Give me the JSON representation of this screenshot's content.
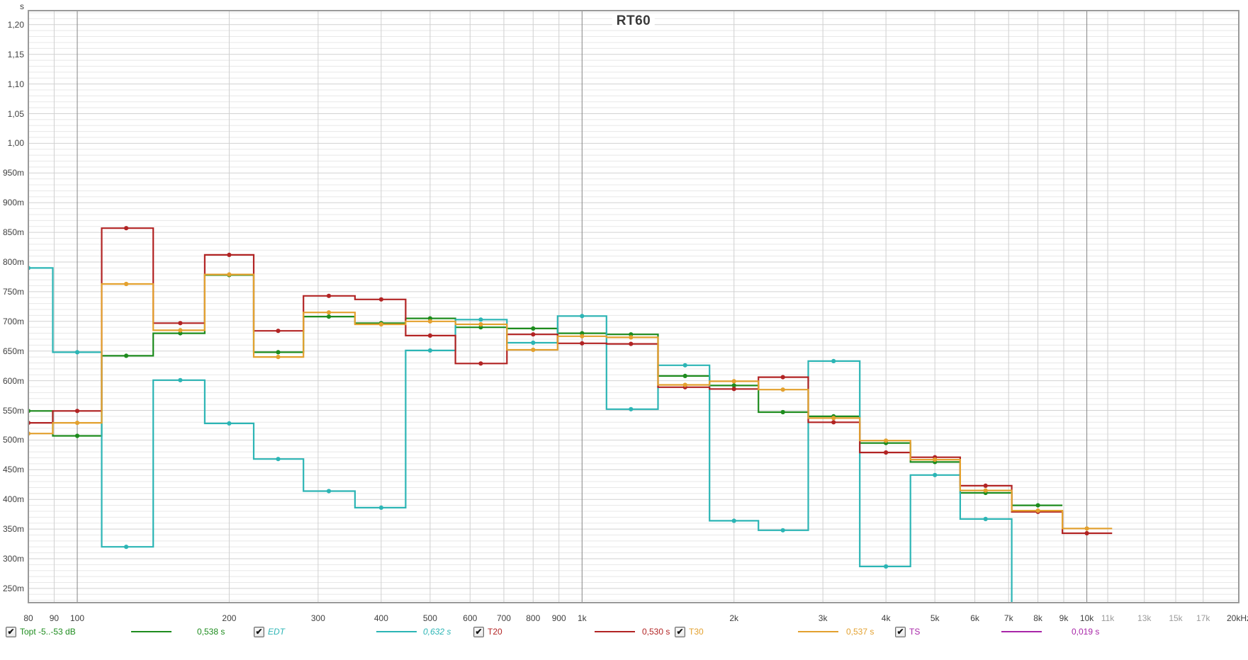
{
  "chart_data": {
    "type": "step-line",
    "title": "RT60",
    "x_scale": "log",
    "x_range_hz": [
      80,
      20000
    ],
    "y_unit": "s",
    "y_range_s": [
      0.226,
      1.224
    ],
    "y_major_step_s": 0.05,
    "y_minor_step_s": 0.01,
    "band_fraction": "1/3 octave",
    "bands_hz": [
      80,
      100,
      125,
      160,
      200,
      250,
      315,
      400,
      500,
      630,
      800,
      1000,
      1250,
      1600,
      2000,
      2500,
      3150,
      4000,
      5000,
      6300,
      8000,
      10000
    ],
    "series": [
      {
        "id": "topt",
        "name": "Topt -5..-53 dB",
        "color": "#1e8c1e",
        "values_ms": [
          549,
          507,
          642,
          680,
          778,
          648,
          708,
          697,
          705,
          690,
          688,
          680,
          678,
          608,
          592,
          547,
          540,
          495,
          463,
          411,
          390,
          null
        ]
      },
      {
        "id": "edt",
        "name": "EDT",
        "color": "#2cb5b5",
        "plunge_after_hz": 6300,
        "values_ms": [
          790,
          648,
          320,
          601,
          528,
          468,
          414,
          386,
          651,
          703,
          664,
          709,
          552,
          626,
          364,
          348,
          633,
          287,
          441,
          367,
          null,
          null
        ]
      },
      {
        "id": "t20",
        "name": "T20",
        "color": "#b22424",
        "values_ms": [
          529,
          549,
          857,
          697,
          812,
          684,
          743,
          737,
          676,
          629,
          678,
          663,
          662,
          589,
          586,
          606,
          530,
          479,
          471,
          423,
          379,
          343
        ]
      },
      {
        "id": "t30",
        "name": "T30",
        "color": "#e3a12f",
        "values_ms": [
          511,
          529,
          763,
          685,
          779,
          640,
          715,
          695,
          700,
          695,
          652,
          675,
          673,
          593,
          599,
          585,
          537,
          499,
          467,
          415,
          381,
          351
        ]
      },
      {
        "id": "ts",
        "name": "TS",
        "color": "#a826a8",
        "values_ms": []
      }
    ],
    "grid_hz": [
      90,
      100,
      200,
      300,
      400,
      500,
      600,
      700,
      800,
      900,
      1000,
      2000,
      3000,
      4000,
      5000,
      6000,
      7000,
      8000,
      9000,
      10000,
      11000,
      13000,
      15000,
      17000
    ],
    "decade_grid_hz": [
      100,
      1000,
      10000
    ]
  },
  "y_axis": {
    "unit": "s",
    "ticks": [
      {
        "label": "1,20",
        "s": 1.2
      },
      {
        "label": "1,15",
        "s": 1.15
      },
      {
        "label": "1,10",
        "s": 1.1
      },
      {
        "label": "1,05",
        "s": 1.05
      },
      {
        "label": "1,00",
        "s": 1.0
      },
      {
        "label": "950m",
        "s": 0.95
      },
      {
        "label": "900m",
        "s": 0.9
      },
      {
        "label": "850m",
        "s": 0.85
      },
      {
        "label": "800m",
        "s": 0.8
      },
      {
        "label": "750m",
        "s": 0.75
      },
      {
        "label": "700m",
        "s": 0.7
      },
      {
        "label": "650m",
        "s": 0.65
      },
      {
        "label": "600m",
        "s": 0.6
      },
      {
        "label": "550m",
        "s": 0.55
      },
      {
        "label": "500m",
        "s": 0.5
      },
      {
        "label": "450m",
        "s": 0.45
      },
      {
        "label": "400m",
        "s": 0.4
      },
      {
        "label": "350m",
        "s": 0.35
      },
      {
        "label": "300m",
        "s": 0.3
      },
      {
        "label": "250m",
        "s": 0.25
      }
    ]
  },
  "x_axis": {
    "ticks": [
      {
        "label": "80",
        "hz": 80,
        "muted": false
      },
      {
        "label": "90",
        "hz": 90,
        "muted": false
      },
      {
        "label": "100",
        "hz": 100,
        "muted": false
      },
      {
        "label": "200",
        "hz": 200,
        "muted": false
      },
      {
        "label": "300",
        "hz": 300,
        "muted": false
      },
      {
        "label": "400",
        "hz": 400,
        "muted": false
      },
      {
        "label": "500",
        "hz": 500,
        "muted": false
      },
      {
        "label": "600",
        "hz": 600,
        "muted": false
      },
      {
        "label": "700",
        "hz": 700,
        "muted": false
      },
      {
        "label": "800",
        "hz": 800,
        "muted": false
      },
      {
        "label": "900",
        "hz": 900,
        "muted": false
      },
      {
        "label": "1k",
        "hz": 1000,
        "muted": false
      },
      {
        "label": "2k",
        "hz": 2000,
        "muted": false
      },
      {
        "label": "3k",
        "hz": 3000,
        "muted": false
      },
      {
        "label": "4k",
        "hz": 4000,
        "muted": false
      },
      {
        "label": "5k",
        "hz": 5000,
        "muted": false
      },
      {
        "label": "6k",
        "hz": 6000,
        "muted": false
      },
      {
        "label": "7k",
        "hz": 7000,
        "muted": false
      },
      {
        "label": "8k",
        "hz": 8000,
        "muted": false
      },
      {
        "label": "9k",
        "hz": 9000,
        "muted": false
      },
      {
        "label": "10k",
        "hz": 10000,
        "muted": false
      },
      {
        "label": "11k",
        "hz": 11000,
        "muted": true
      },
      {
        "label": "13k",
        "hz": 13000,
        "muted": true
      },
      {
        "label": "15k",
        "hz": 15000,
        "muted": true
      },
      {
        "label": "17k",
        "hz": 17000,
        "muted": true
      },
      {
        "label": "20kHz",
        "hz": 20000,
        "muted": false
      }
    ]
  },
  "legend": {
    "items": [
      {
        "id": "topt",
        "label": "Topt -5..-53 dB",
        "value": "0,538 s",
        "color": "#1e8c1e",
        "checked": true,
        "check_glyph": "✔",
        "italic": false
      },
      {
        "id": "edt",
        "label": "EDT",
        "value": "0,632 s",
        "color": "#2cb5b5",
        "checked": true,
        "check_glyph": "✔",
        "italic": true
      },
      {
        "id": "t20",
        "label": "T20",
        "value": "0,530 s",
        "color": "#b22424",
        "checked": true,
        "check_glyph": "✔",
        "italic": false
      },
      {
        "id": "t30",
        "label": "T30",
        "value": "0,537 s",
        "color": "#e3a12f",
        "checked": true,
        "check_glyph": "✔",
        "italic": false
      },
      {
        "id": "ts",
        "label": "TS",
        "value": "0,019 s",
        "color": "#a826a8",
        "checked": true,
        "check_glyph": "✔",
        "italic": false
      }
    ]
  },
  "colors": {
    "grid_minor": "#e8e8e8",
    "grid_major": "#d2d2d2",
    "grid_vertical": "#d0d0d0",
    "grid_decade": "#858585",
    "plot_border": "#9a9a9a",
    "title_text": "#3a3a3a",
    "tick_text": "#3f3f3f",
    "muted_tick_text": "#9b9b9b"
  }
}
